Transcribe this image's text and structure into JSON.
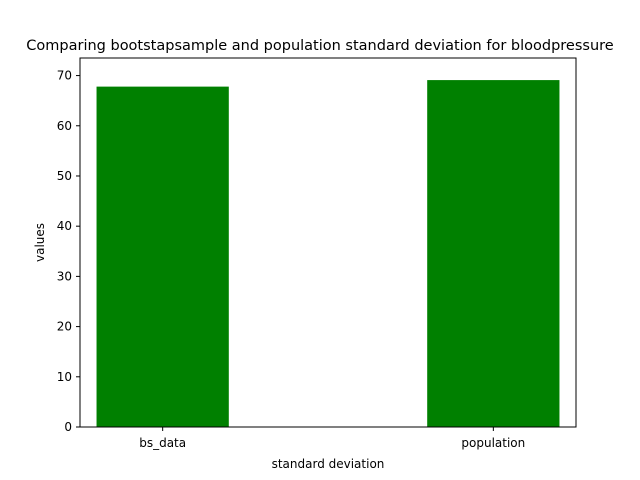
{
  "chart_data": {
    "type": "bar",
    "title": "Comparing bootstapsample and population standard deviation for bloodpressure",
    "xlabel": "standard deviation",
    "ylabel": "values",
    "categories": [
      "bs_data",
      "population"
    ],
    "values": [
      67.8,
      69.1
    ],
    "ylim": [
      0,
      73.5
    ],
    "yticks": [
      0,
      10,
      20,
      30,
      40,
      50,
      60,
      70
    ],
    "bar_color": "#008000",
    "grid": false,
    "legend": "none"
  }
}
